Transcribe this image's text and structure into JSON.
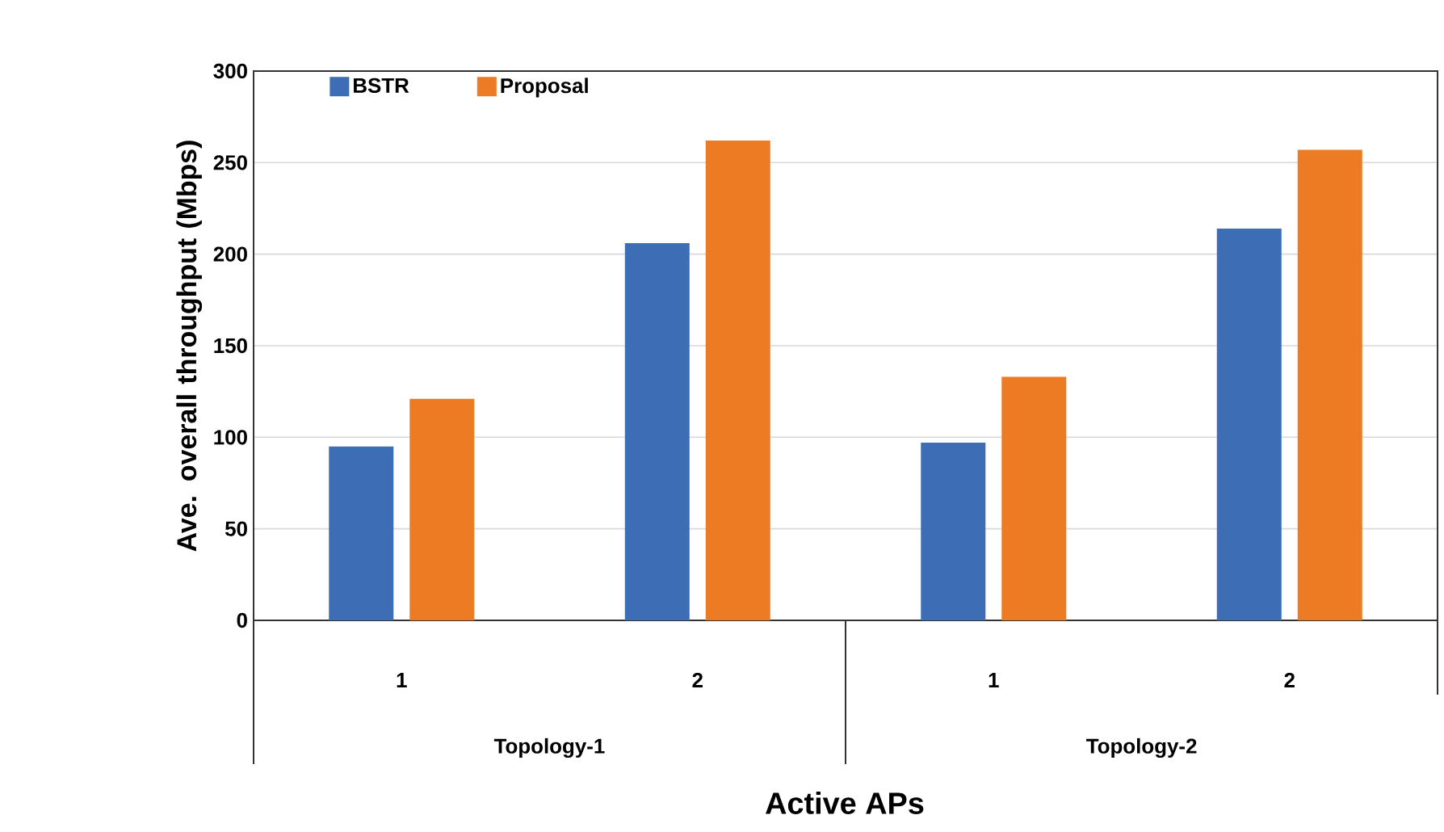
{
  "chart_data": {
    "type": "bar",
    "categories": [
      "1",
      "2",
      "1",
      "2"
    ],
    "annotations": [
      "Topology-1",
      "Topology-2"
    ],
    "xlabel": "Active APs",
    "ylabel": "Ave. overall throughput (Mbps)",
    "series": [
      {
        "name": "BSTR",
        "color": "#3d6db5",
        "values": [
          95,
          206,
          97,
          214
        ]
      },
      {
        "name": "Proposal",
        "color": "#ed7b24",
        "values": [
          121,
          262,
          133,
          257
        ]
      }
    ],
    "ylim": [
      0,
      300
    ],
    "yticks": [
      0,
      50,
      100,
      150,
      200,
      250,
      300
    ],
    "grid": "y",
    "legend": "top left"
  }
}
